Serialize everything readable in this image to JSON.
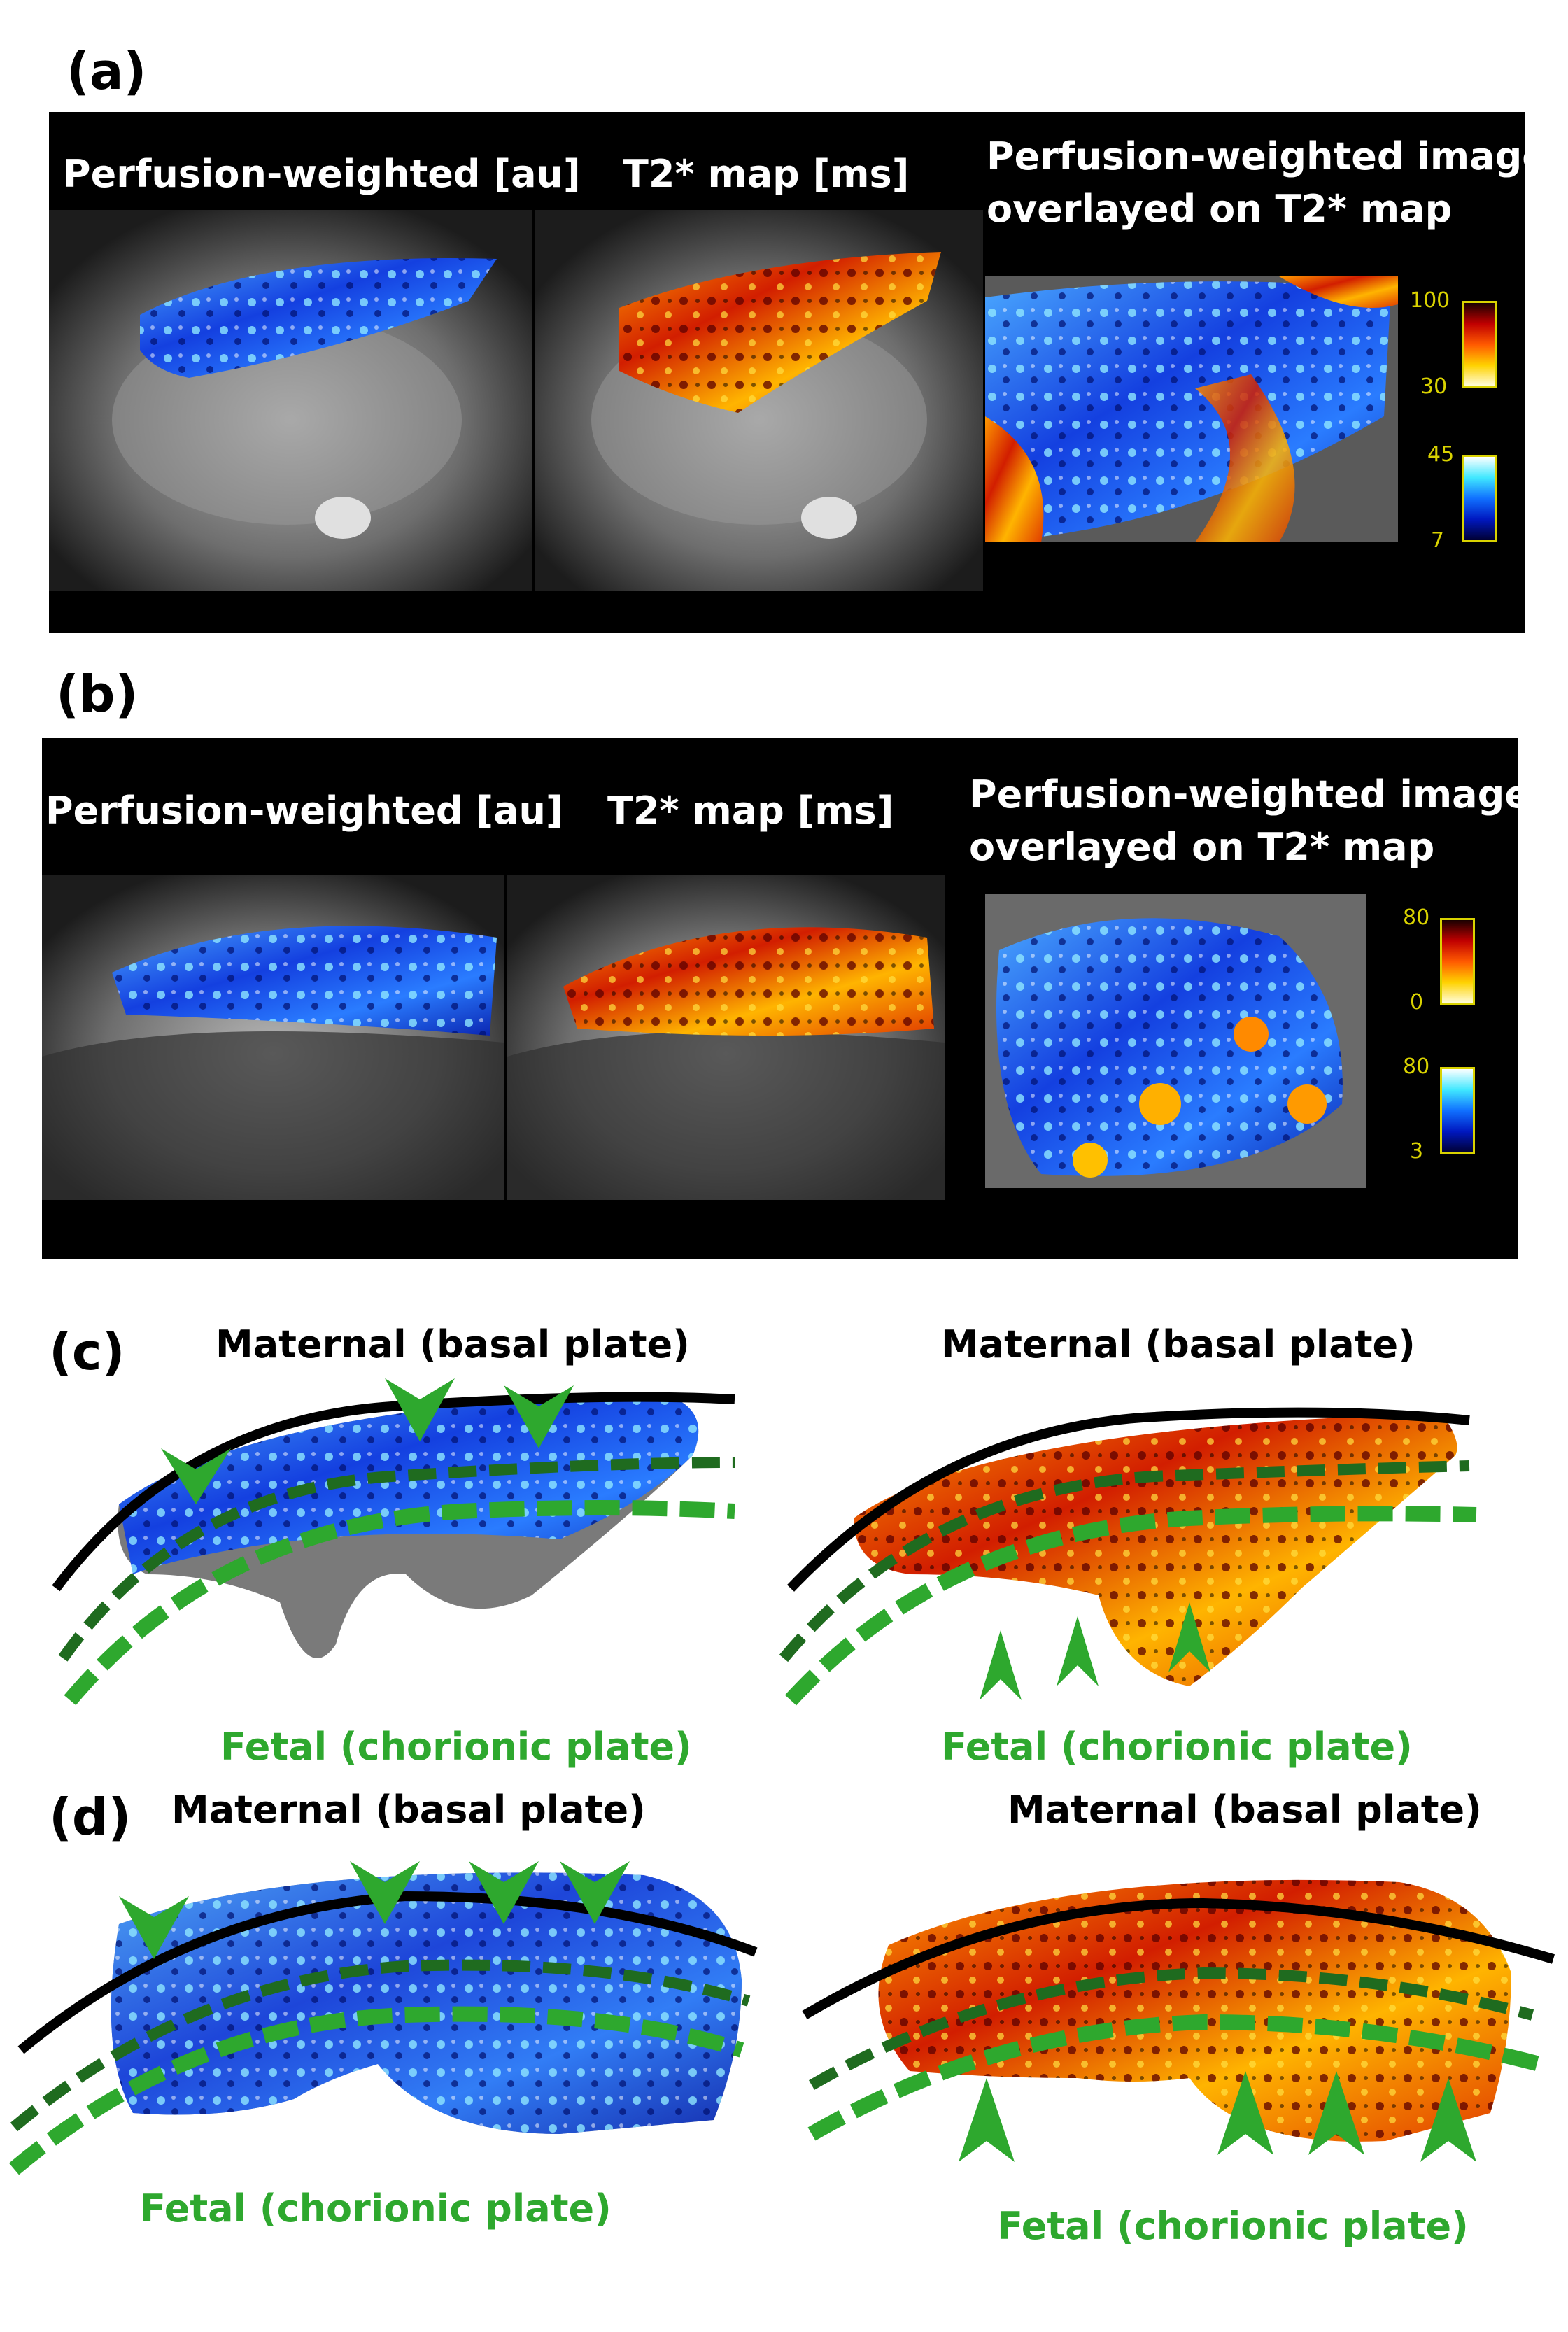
{
  "panel_a": {
    "label": "(a)",
    "title_perfusion": "Perfusion-weighted  [au]",
    "title_t2": "T2* map [ms]",
    "title_overlay_line1": "Perfusion-weighted image",
    "title_overlay_line2": "overlayed on T2* map",
    "hot_max": "100",
    "hot_min": "30",
    "cold_max": "45",
    "cold_min": "7"
  },
  "panel_b": {
    "label": "(b)",
    "title_perfusion": "Perfusion-weighted  [au]",
    "title_t2": "T2* map [ms]",
    "title_overlay_line1": "Perfusion-weighted image",
    "title_overlay_line2": "overlayed on T2* map",
    "hot_max": "80",
    "hot_min": "0",
    "cold_max": "80",
    "cold_min": "3"
  },
  "panel_c": {
    "label": "(c)",
    "left_maternal": "Maternal (basal plate)",
    "left_fetal": "Fetal (chorionic plate)",
    "right_maternal": "Maternal (basal plate)",
    "right_fetal": "Fetal (chorionic plate)"
  },
  "panel_d": {
    "label": "(d)",
    "left_maternal": "Maternal (basal plate)",
    "left_fetal": "Fetal (chorionic plate)",
    "right_maternal": "Maternal (basal plate)",
    "right_fetal": "Fetal (chorionic plate)"
  },
  "colors": {
    "background": "#000000",
    "perfusion_blue": "#1a5cff",
    "t2_hot": "#ff6a00",
    "arrow_green": "#2ea82e",
    "dashed_dark_green": "#1f6b1f",
    "label_tick_yellow": "#d9d200"
  }
}
